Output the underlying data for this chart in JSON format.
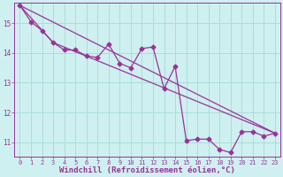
{
  "bg_color": "#cff0f0",
  "grid_color": "#aadddd",
  "line_color": "#993399",
  "marker": "D",
  "marker_size": 2.5,
  "linewidth": 0.9,
  "xlabel": "Windchill (Refroidissement éolien,°C)",
  "xlabel_fontsize": 6.5,
  "ylabel_ticks": [
    11,
    12,
    13,
    14,
    15
  ],
  "xlim": [
    -0.5,
    23.5
  ],
  "ylim": [
    10.5,
    15.7
  ],
  "xtick_labels": [
    "0",
    "1",
    "2",
    "3",
    "4",
    "5",
    "6",
    "7",
    "8",
    "9",
    "10",
    "11",
    "12",
    "13",
    "14",
    "15",
    "16",
    "17",
    "18",
    "19",
    "20",
    "21",
    "22",
    "23"
  ],
  "series1_x": [
    0,
    1,
    2,
    3,
    4,
    5,
    6,
    7,
    8,
    9,
    10,
    11,
    12,
    13,
    14,
    15,
    16,
    17,
    18,
    19,
    20,
    21,
    22,
    23
  ],
  "series1_y": [
    15.6,
    15.05,
    14.75,
    14.35,
    14.1,
    14.1,
    13.9,
    13.85,
    14.3,
    13.65,
    13.5,
    14.15,
    14.2,
    12.8,
    13.55,
    11.05,
    11.1,
    11.1,
    10.75,
    10.65,
    11.35,
    11.35,
    11.2,
    11.3
  ],
  "series2_x": [
    0,
    23
  ],
  "series2_y": [
    15.6,
    11.3
  ],
  "series3_x": [
    0,
    3,
    23
  ],
  "series3_y": [
    15.6,
    14.35,
    11.3
  ],
  "tick_fontsize": 5.0,
  "ytick_fontsize": 5.5
}
